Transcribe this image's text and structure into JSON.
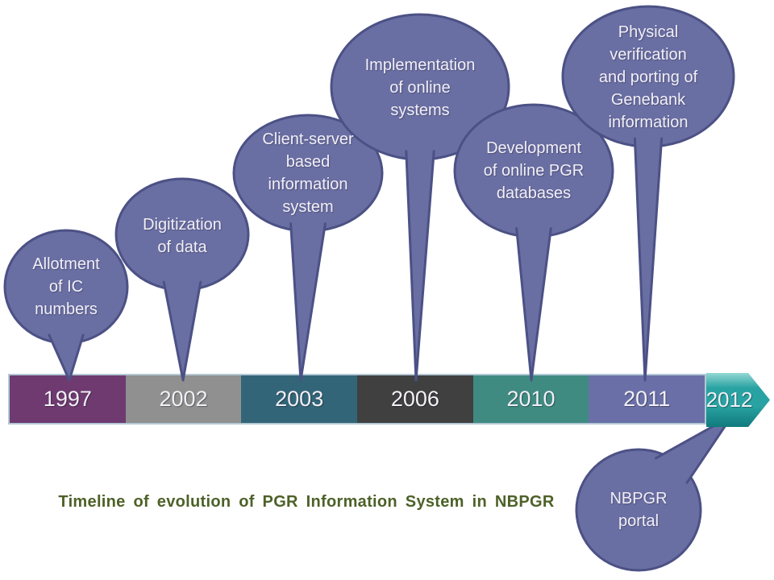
{
  "title": {
    "text": "Timeline of evolution of PGR Information System in NBPGR",
    "color": "#4d6128"
  },
  "bubble_style": {
    "fill": "#696ea3",
    "stroke": "#4c5185",
    "text_color": "#f2eff7"
  },
  "timeline_bar": {
    "border_color": "#b3c9d6",
    "year_text_color": "#f2eff7",
    "segments": [
      {
        "year": "1997",
        "color": "#6e3a70"
      },
      {
        "year": "2002",
        "color": "#909090"
      },
      {
        "year": "2003",
        "color": "#336578"
      },
      {
        "year": "2006",
        "color": "#404040"
      },
      {
        "year": "2010",
        "color": "#3f8b82"
      },
      {
        "year": "2011",
        "color": "#6a70a7"
      }
    ],
    "arrow_segment": {
      "year": "2012",
      "color": "#28a2a2",
      "highlight": "#93d8d3",
      "shadow": "#117a7d"
    }
  },
  "callouts": [
    {
      "id": "allotment",
      "label": "Allotment\nof IC\nnumbers",
      "year": "1997"
    },
    {
      "id": "digitization",
      "label": "Digitization\nof data",
      "year": "2002"
    },
    {
      "id": "client-server",
      "label": "Client-server\nbased\ninformation\nsystem",
      "year": "2003"
    },
    {
      "id": "implementation",
      "label": "Implementation\nof online\nsystems",
      "year": "2006"
    },
    {
      "id": "development",
      "label": "Development\nof online PGR\ndatabases",
      "year": "2010"
    },
    {
      "id": "physical-verification",
      "label": "Physical\nverification\nand porting of\nGenebank\ninformation",
      "year": "2011"
    },
    {
      "id": "nbpgr-portal",
      "label": "NBPGR\nportal",
      "year": "2012"
    }
  ]
}
